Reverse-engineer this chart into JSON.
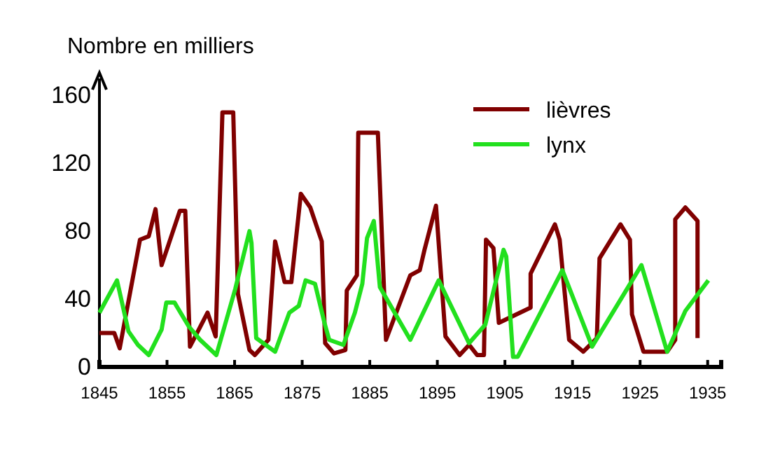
{
  "chart_data": {
    "type": "line",
    "ylabel": "Nombre en milliers",
    "xlim": [
      1845,
      1937
    ],
    "ylim": [
      0,
      170
    ],
    "xticks": [
      1845,
      1855,
      1865,
      1875,
      1885,
      1895,
      1905,
      1915,
      1925,
      1935
    ],
    "yticks": [
      0,
      40,
      80,
      120,
      160
    ],
    "grid": false,
    "legend": "top right",
    "marker": "none",
    "line_style": "solid",
    "series": [
      {
        "name": "lièvres",
        "color": "#800000",
        "x": [
          1845,
          1847.2,
          1848,
          1848.7,
          1851,
          1852.3,
          1853.3,
          1854.2,
          1856.9,
          1857.7,
          1858.4,
          1861,
          1862.2,
          1863.2,
          1864.8,
          1865.5,
          1867.2,
          1868,
          1870,
          1871,
          1872.4,
          1873.4,
          1874.8,
          1876.2,
          1877.9,
          1878.4,
          1879.7,
          1881.4,
          1881.6,
          1883.1,
          1883.3,
          1886.2,
          1887.4,
          1891,
          1892.4,
          1893.1,
          1894.8,
          1896.2,
          1898.3,
          1899.7,
          1900.9,
          1901.9,
          1902.2,
          1903.3,
          1904.1,
          1908.8,
          1908.8,
          1912.4,
          1913.1,
          1914.5,
          1916.6,
          1918.6,
          1919,
          1922.1,
          1923.5,
          1923.8,
          1925.5,
          1929,
          1930.2,
          1930.2,
          1931.7,
          1933.5,
          1933.5
        ],
        "values": [
          20,
          20,
          11,
          26,
          75,
          77,
          93,
          60,
          92,
          92,
          12,
          32,
          18,
          150,
          150,
          43,
          10,
          7,
          16,
          74,
          50,
          50,
          102,
          94,
          74,
          14,
          8,
          10,
          45,
          54,
          138,
          138,
          16,
          54,
          57,
          69,
          95,
          18,
          7,
          13,
          7,
          7,
          75,
          70,
          26,
          35,
          55,
          84,
          75,
          16,
          9,
          17,
          64,
          84,
          75,
          31,
          9,
          9,
          16,
          87,
          94,
          86,
          17
        ]
      },
      {
        "name": "lynx",
        "color": "#22e01e",
        "x": [
          1845,
          1847.6,
          1849.3,
          1850.7,
          1852.3,
          1854.2,
          1854.9,
          1856.1,
          1858.2,
          1859.9,
          1862.3,
          1865.1,
          1867.2,
          1867.5,
          1868.2,
          1871,
          1873.1,
          1874.5,
          1875.5,
          1876.9,
          1878.3,
          1879,
          1881.1,
          1882.8,
          1883.9,
          1884.6,
          1885.6,
          1886.5,
          1891,
          1895.2,
          1899.7,
          1902.1,
          1904.8,
          1905.2,
          1906.2,
          1906.9,
          1913.5,
          1917.9,
          1925.2,
          1929,
          1931.7,
          1935.1
        ],
        "values": [
          32,
          51,
          21,
          13,
          7,
          22,
          38,
          38,
          24,
          16,
          7,
          46,
          80,
          73,
          17,
          9,
          32,
          36,
          51,
          49,
          26,
          16,
          13,
          32,
          49,
          76,
          86,
          47,
          16,
          51,
          14,
          25,
          69,
          65,
          6,
          6,
          57,
          12,
          60,
          9,
          33,
          51
        ]
      }
    ]
  }
}
